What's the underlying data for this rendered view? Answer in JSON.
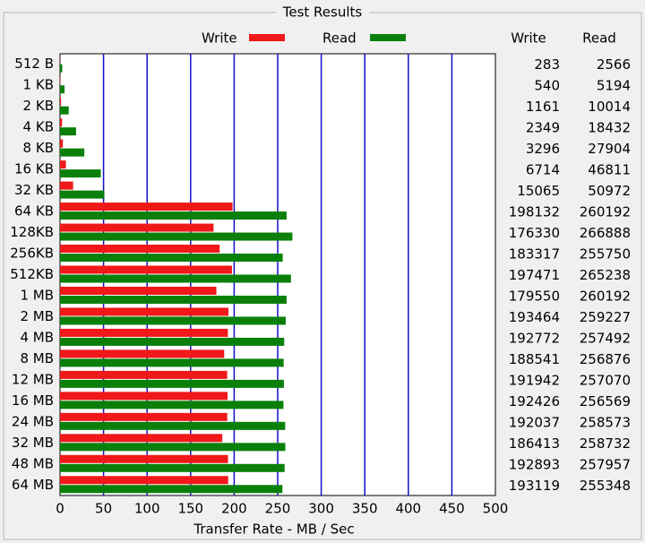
{
  "chart_data": {
    "type": "bar",
    "orientation": "horizontal",
    "title": "Test Results",
    "x_label": "Transfer Rate - MB / Sec",
    "categories": [
      "512 B",
      "1 KB",
      "2 KB",
      "4 KB",
      "8 KB",
      "16 KB",
      "32 KB",
      "64 KB",
      "128KB",
      "256KB",
      "512KB",
      "1 MB",
      "2 MB",
      "4 MB",
      "8 MB",
      "12 MB",
      "16 MB",
      "24 MB",
      "32 MB",
      "48 MB",
      "64 MB"
    ],
    "series": [
      {
        "name": "Write",
        "color": "#f01818",
        "values": [
          0.283,
          0.54,
          1.161,
          2.349,
          3.296,
          6.714,
          15.065,
          198.132,
          176.33,
          183.317,
          197.471,
          179.55,
          193.464,
          192.772,
          188.541,
          191.942,
          192.426,
          192.037,
          186.413,
          192.893,
          193.119
        ],
        "value_labels": [
          "283",
          "540",
          "1161",
          "2349",
          "3296",
          "6714",
          "15065",
          "198132",
          "176330",
          "183317",
          "197471",
          "179550",
          "193464",
          "192772",
          "188541",
          "191942",
          "192426",
          "192037",
          "186413",
          "192893",
          "193119"
        ]
      },
      {
        "name": "Read",
        "color": "#0a800a",
        "values": [
          2.566,
          5.194,
          10.014,
          18.432,
          27.904,
          46.811,
          50.972,
          260.192,
          266.888,
          255.75,
          265.238,
          260.192,
          259.227,
          257.492,
          256.876,
          257.07,
          256.569,
          258.573,
          258.732,
          257.957,
          255.348
        ],
        "value_labels": [
          "2566",
          "5194",
          "10014",
          "18432",
          "27904",
          "46811",
          "50972",
          "260192",
          "266888",
          "255750",
          "265238",
          "260192",
          "259227",
          "257492",
          "256876",
          "257070",
          "256569",
          "258573",
          "258732",
          "257957",
          "255348"
        ]
      }
    ],
    "xlim": [
      0,
      500
    ],
    "xticks": [
      0,
      50,
      100,
      150,
      200,
      250,
      300,
      350,
      400,
      450,
      500
    ],
    "grid": true,
    "grid_color": "#1010c8"
  }
}
